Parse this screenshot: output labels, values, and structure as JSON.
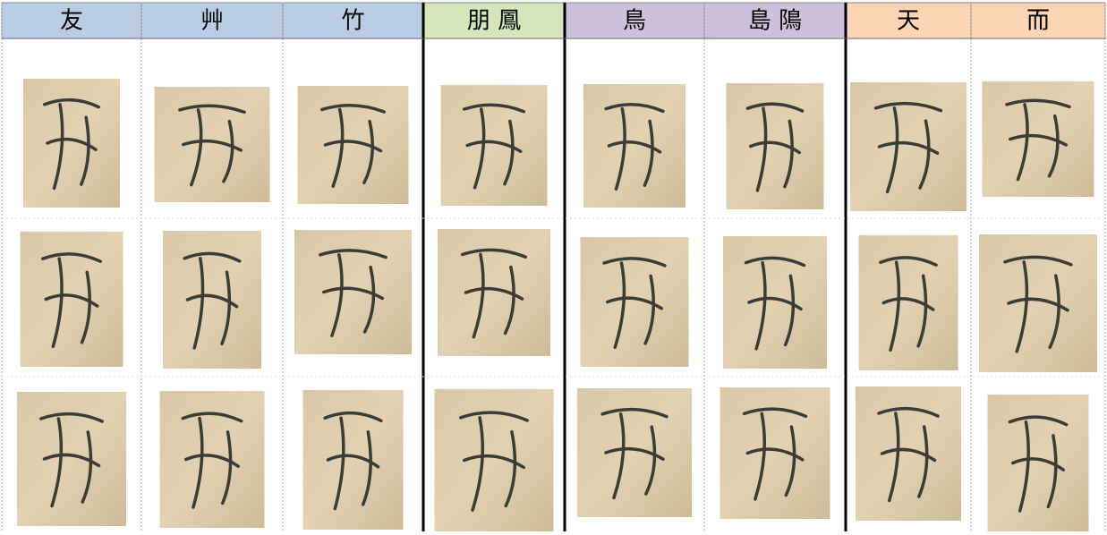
{
  "table": {
    "headers": [
      "友",
      "艸",
      "竹",
      "朋 鳳",
      "鳥",
      "島 隝",
      "天",
      "而"
    ]
  }
}
